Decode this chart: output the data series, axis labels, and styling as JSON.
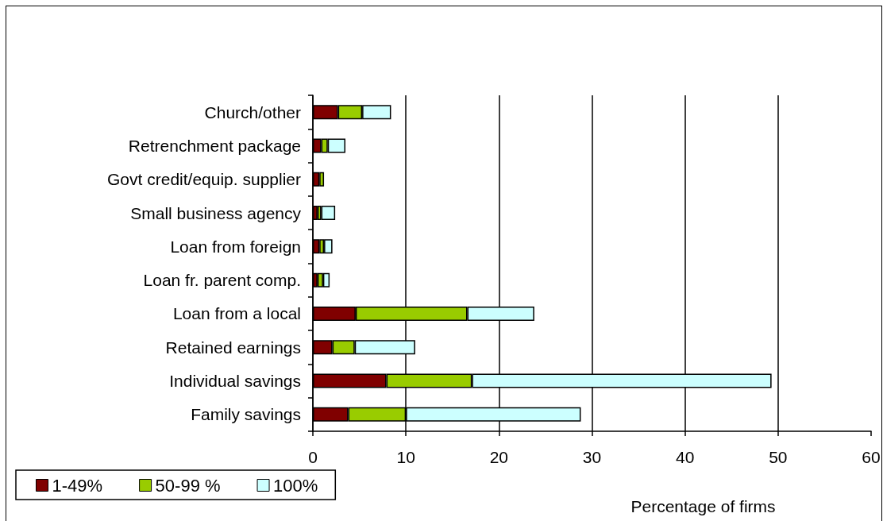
{
  "chart_data": {
    "type": "bar",
    "orientation": "horizontal",
    "stacked": true,
    "categories": [
      "Church/other",
      "Retrenchment package",
      "Govt credit/equip. supplier",
      "Small business agency",
      "Loan from foreign",
      "Loan fr. parent comp.",
      "Loan from a local",
      "Retained earnings",
      "Individual savings",
      "Family savings"
    ],
    "series": [
      {
        "name": "1-49%",
        "color": "#800000",
        "values": [
          2.7,
          0.9,
          0.7,
          0.5,
          0.7,
          0.5,
          4.6,
          2.1,
          7.9,
          3.8
        ]
      },
      {
        "name": "50-99 %",
        "color": "#99cc00",
        "values": [
          2.6,
          0.7,
          0.5,
          0.4,
          0.5,
          0.6,
          12.0,
          2.4,
          9.2,
          6.2
        ]
      },
      {
        "name": "100%",
        "color": "#ccffff",
        "values": [
          3.1,
          1.9,
          null,
          1.5,
          0.9,
          0.7,
          7.2,
          6.5,
          32.2,
          18.8
        ]
      }
    ],
    "xlabel": "Percentage of firms",
    "xlim": [
      0,
      60
    ],
    "xticks": [
      0,
      10,
      20,
      30,
      40,
      50,
      60
    ],
    "grid": "x",
    "legend": "bottom left"
  }
}
